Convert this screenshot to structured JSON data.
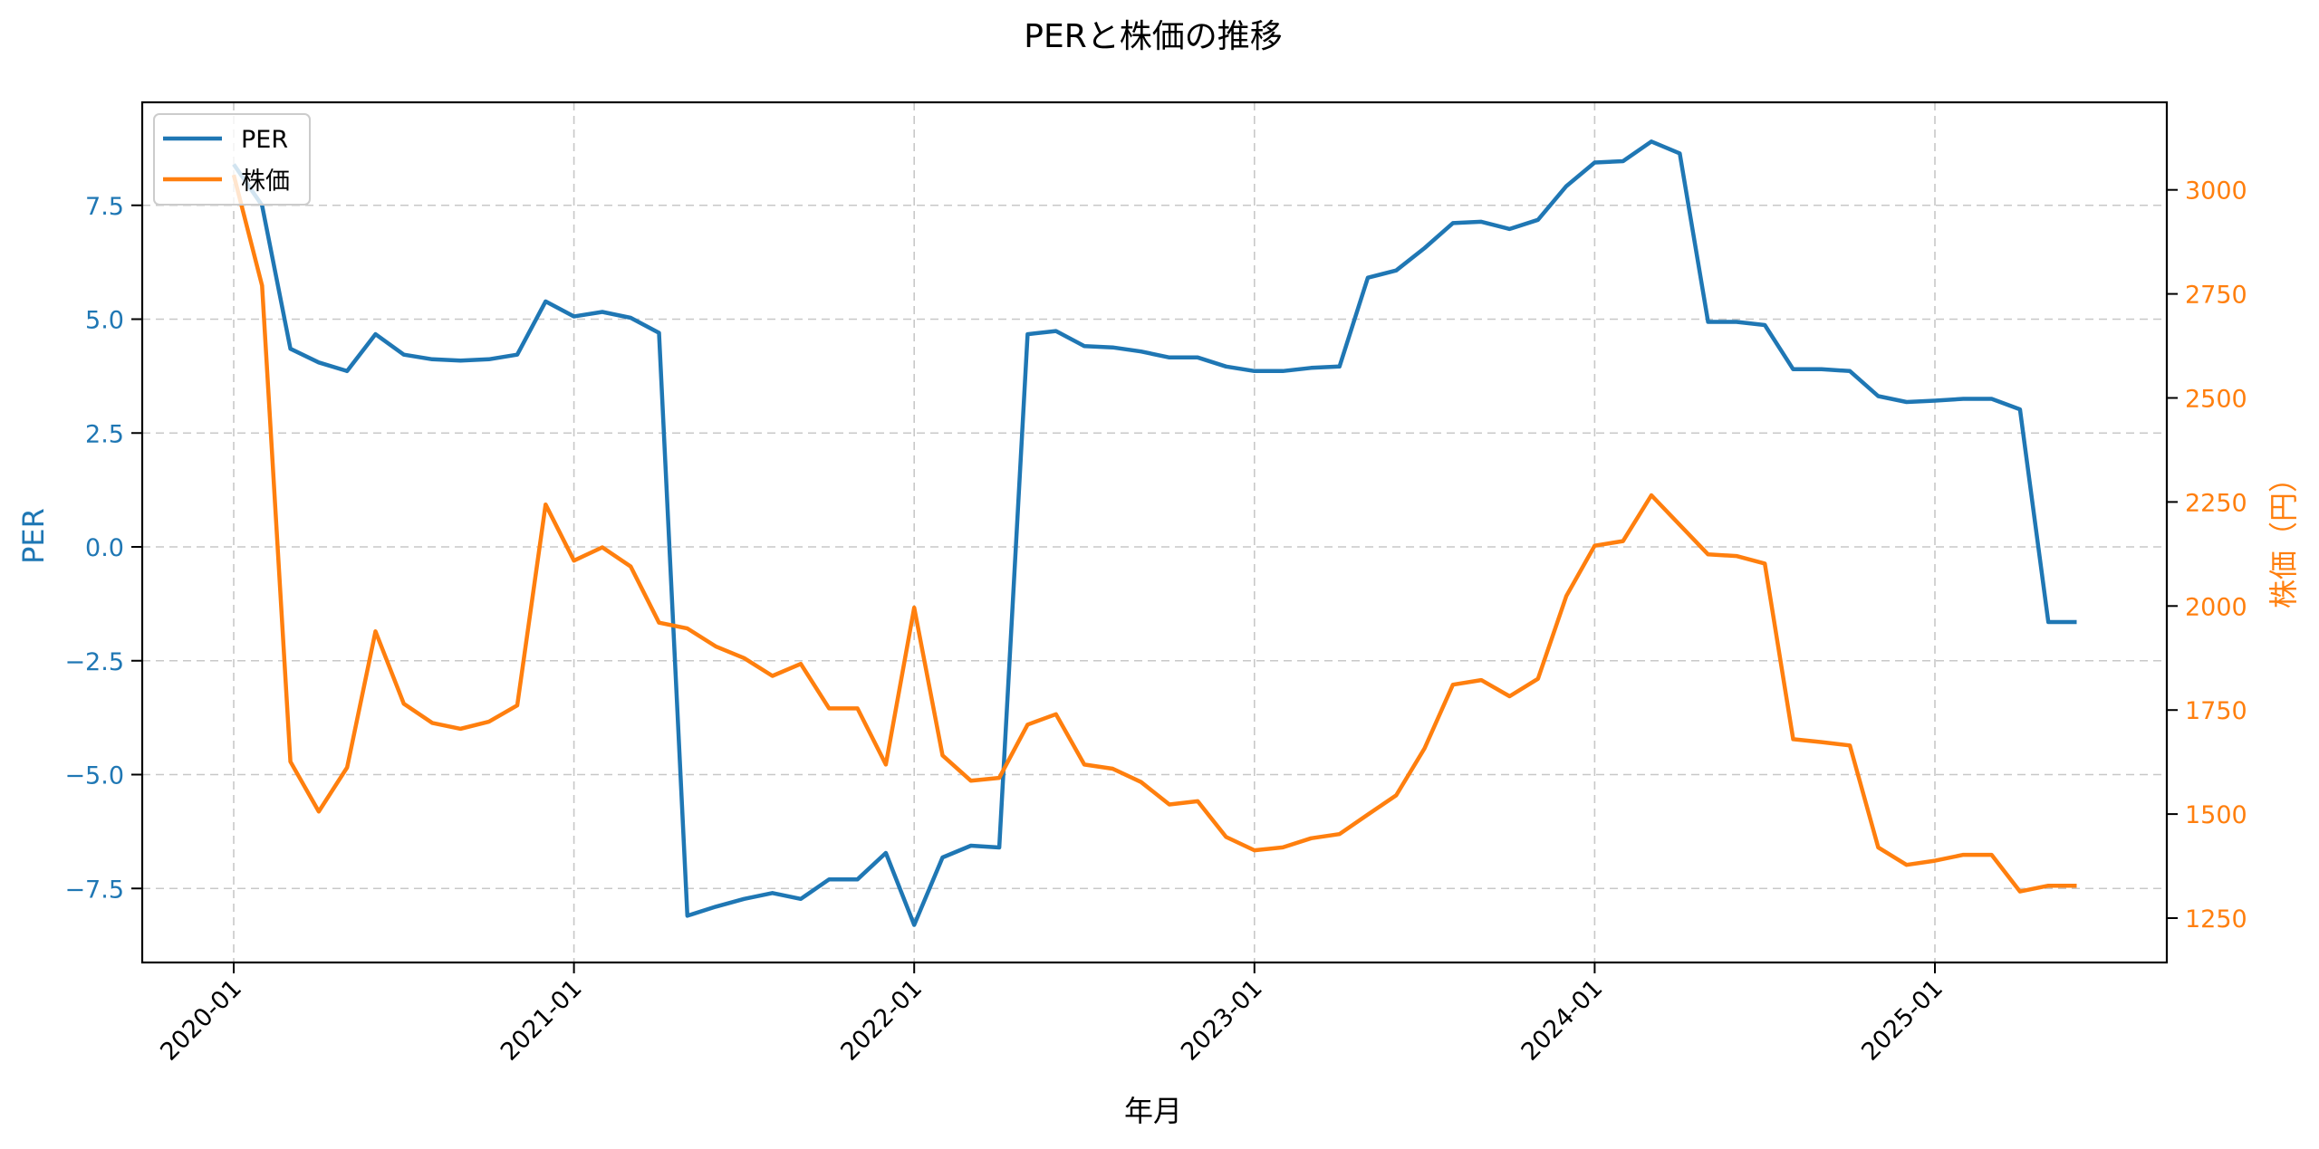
{
  "chart_data": {
    "type": "line",
    "title": "PERと株価の推移",
    "xlabel": "年月",
    "ylabel_left": "PER",
    "ylabel_right": "株価（円）",
    "x_tick_labels": [
      "2020-01",
      "2021-01",
      "2022-01",
      "2023-01",
      "2024-01",
      "2025-01"
    ],
    "y_left_ticks": [
      "−7.5",
      "−5.0",
      "−2.5",
      "0.0",
      "2.5",
      "5.0",
      "7.5"
    ],
    "y_right_ticks": [
      "1250",
      "1500",
      "1750",
      "2000",
      "2250",
      "2500",
      "2750",
      "3000"
    ],
    "y_left_range": [
      -9.2,
      9.7
    ],
    "y_right_range": [
      1130,
      3190
    ],
    "grid": true,
    "legend_position": "upper left",
    "x": [
      "2020-01",
      "2020-02",
      "2020-03",
      "2020-04",
      "2020-05",
      "2020-06",
      "2020-07",
      "2020-08",
      "2020-09",
      "2020-10",
      "2020-11",
      "2020-12",
      "2021-01",
      "2021-02",
      "2021-03",
      "2021-04",
      "2021-05",
      "2021-06",
      "2021-07",
      "2021-08",
      "2021-09",
      "2021-10",
      "2021-11",
      "2021-12",
      "2022-01",
      "2022-02",
      "2022-03",
      "2022-04",
      "2022-05",
      "2022-06",
      "2022-07",
      "2022-08",
      "2022-09",
      "2022-10",
      "2022-11",
      "2022-12",
      "2023-01",
      "2023-02",
      "2023-03",
      "2023-04",
      "2023-05",
      "2023-06",
      "2023-07",
      "2023-08",
      "2023-09",
      "2023-10",
      "2023-11",
      "2023-12",
      "2024-01",
      "2024-02",
      "2024-03",
      "2024-04",
      "2024-05",
      "2024-06",
      "2024-07",
      "2024-08",
      "2024-09",
      "2024-10",
      "2024-11",
      "2024-12",
      "2025-01",
      "2025-02",
      "2025-03",
      "2025-04",
      "2025-05",
      "2025-06"
    ],
    "series": [
      {
        "name": "PER",
        "axis": "left",
        "color": "#1f77b4",
        "values": [
          8.4,
          7.5,
          4.35,
          4.05,
          3.86,
          4.67,
          4.22,
          4.12,
          4.09,
          4.12,
          4.22,
          5.39,
          5.06,
          5.16,
          5.03,
          4.7,
          -8.1,
          -7.9,
          -7.73,
          -7.6,
          -7.73,
          -7.3,
          -7.3,
          -6.72,
          -8.3,
          -6.82,
          -6.56,
          -6.6,
          4.67,
          4.74,
          4.41,
          4.38,
          4.29,
          4.16,
          4.16,
          3.96,
          3.86,
          3.86,
          3.93,
          3.96,
          5.91,
          6.07,
          6.56,
          7.11,
          7.14,
          6.98,
          7.18,
          7.92,
          8.44,
          8.47,
          8.9,
          8.64,
          4.94,
          4.94,
          4.87,
          3.9,
          3.9,
          3.86,
          3.31,
          3.18,
          3.21,
          3.25,
          3.25,
          3.02,
          -1.65,
          -1.65
        ]
      },
      {
        "name": "株価",
        "axis": "right",
        "color": "#ff7f0e",
        "values": [
          3036,
          2770,
          1626,
          1506,
          1612,
          1939,
          1765,
          1719,
          1705,
          1722,
          1761,
          2244,
          2109,
          2141,
          2095,
          1960,
          1946,
          1903,
          1875,
          1832,
          1861,
          1754,
          1754,
          1619,
          1996,
          1641,
          1580,
          1587,
          1715,
          1740,
          1619,
          1609,
          1577,
          1523,
          1531,
          1445,
          1413,
          1420,
          1442,
          1452,
          1499,
          1545,
          1658,
          1811,
          1822,
          1783,
          1825,
          2024,
          2145,
          2156,
          2266,
          2195,
          2124,
          2120,
          2102,
          1680,
          1673,
          1665,
          1420,
          1378,
          1388,
          1402,
          1402,
          1314,
          1328,
          1328
        ]
      }
    ]
  },
  "legend": {
    "items": [
      {
        "label": "PER",
        "color": "#1f77b4"
      },
      {
        "label": "株価",
        "color": "#ff7f0e"
      }
    ]
  }
}
